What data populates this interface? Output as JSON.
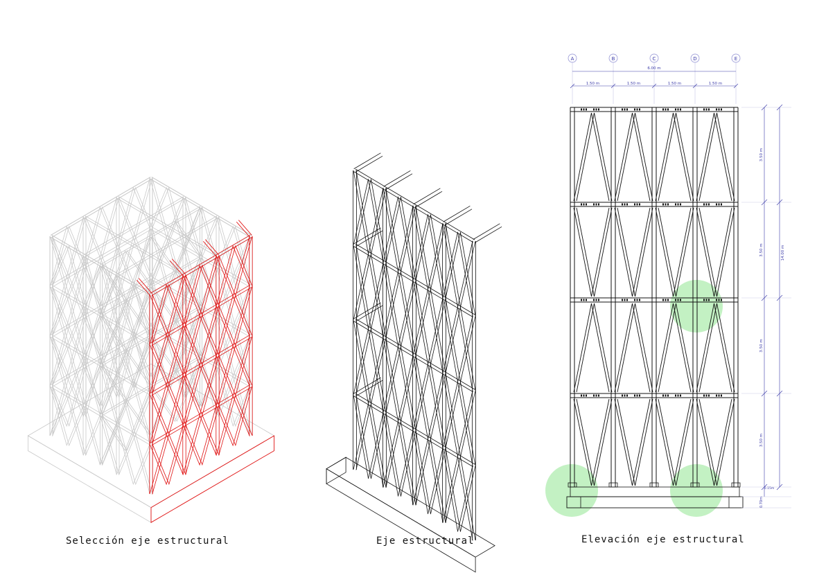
{
  "panels": [
    {
      "caption": "Selección eje estructural"
    },
    {
      "caption": "Eje estructural"
    },
    {
      "caption": "Elevación eje estructural"
    }
  ],
  "elevation": {
    "axes": [
      "A",
      "B",
      "C",
      "D",
      "E"
    ],
    "total_width": "6.00 m",
    "bay_widths": [
      "1.50 m",
      "1.50 m",
      "1.50 m",
      "1.50 m"
    ],
    "story_heights": [
      "3.50 m",
      "3.50 m",
      "3.50 m",
      "3.50 m"
    ],
    "total_height": "14.00 m",
    "base_dims": [
      "0.15m",
      "0.70m"
    ]
  },
  "colors": {
    "line": "#111111",
    "selected": "#e01010",
    "grid": "#c8c8c8",
    "highlight": "#9be89b",
    "dimension": "#3a3aa8"
  }
}
